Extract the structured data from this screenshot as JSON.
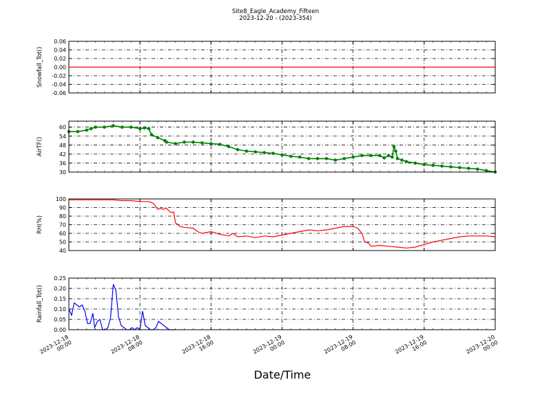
{
  "figure": {
    "title_line1": "Site8_Eagle_Academy_Fifteen",
    "title_line2": "2023-12-20 - (2023-354)",
    "xlabel": "Date/Time",
    "x_ticks": [
      {
        "line1": "2023-12-18",
        "line2": "00:00",
        "h": 0
      },
      {
        "line1": "2023-12-18",
        "line2": "08:00",
        "h": 8
      },
      {
        "line1": "2023-12-18",
        "line2": "16:00",
        "h": 16
      },
      {
        "line1": "2023-12-19",
        "line2": "00:00",
        "h": 24
      },
      {
        "line1": "2023-12-19",
        "line2": "08:00",
        "h": 32
      },
      {
        "line1": "2023-12-19",
        "line2": "16:00",
        "h": 40
      },
      {
        "line1": "2023-12-20",
        "line2": "00:00",
        "h": 48
      }
    ],
    "x_range_hours": [
      0,
      48
    ]
  },
  "chart_data": [
    {
      "type": "line",
      "ylabel": "Snowfall_Tot()",
      "ylim": [
        -0.06,
        0.06
      ],
      "yticks": [
        "0.06",
        "0.04",
        "0.02",
        "0.00",
        "-0.02",
        "-0.04",
        "-0.06"
      ],
      "ytick_values": [
        0.06,
        0.04,
        0.02,
        0.0,
        -0.02,
        -0.04,
        -0.06
      ],
      "color": "#ff0000",
      "marker": false,
      "grid": true,
      "x_hours": [
        0,
        48
      ],
      "y": [
        0.0,
        0.0
      ]
    },
    {
      "type": "line",
      "ylabel": "AirTF()",
      "ylim": [
        30,
        64
      ],
      "yticks": [
        "60",
        "54",
        "48",
        "42",
        "36",
        "30"
      ],
      "ytick_values": [
        60,
        54,
        48,
        42,
        36,
        30
      ],
      "color": "#008000",
      "marker": true,
      "grid": true,
      "x_hours": [
        0,
        1,
        2,
        2.5,
        3,
        4,
        5,
        6,
        7,
        8,
        8.5,
        9,
        9.3,
        10,
        10.8,
        11,
        12,
        13,
        14,
        15,
        16,
        17,
        18,
        19,
        20,
        21,
        22,
        23,
        24,
        25,
        26,
        27,
        28,
        29,
        30,
        31,
        32,
        33,
        34,
        35,
        35.5,
        36,
        36.4,
        36.6,
        36.8,
        37,
        37.5,
        38,
        39,
        40,
        41,
        42,
        43,
        44,
        45,
        46,
        47,
        48
      ],
      "y": [
        57,
        57,
        58,
        59,
        60,
        60,
        61,
        60,
        60,
        59,
        59.5,
        59,
        55,
        53,
        51,
        50,
        49,
        50,
        50,
        49.5,
        49,
        48.5,
        47,
        45,
        44,
        43.5,
        43,
        42.5,
        41.5,
        40.5,
        40,
        39,
        39,
        39,
        38,
        39,
        40,
        41,
        41,
        41,
        39.5,
        41,
        40,
        47,
        44,
        39,
        38,
        37,
        36,
        35,
        34.5,
        34,
        33.5,
        33,
        32.5,
        32,
        31,
        30
      ]
    },
    {
      "type": "line",
      "ylabel": "RH(%)",
      "ylim": [
        40,
        100
      ],
      "yticks": [
        "100",
        "90",
        "80",
        "70",
        "60",
        "50",
        "40"
      ],
      "ytick_values": [
        100,
        90,
        80,
        70,
        60,
        50,
        40
      ],
      "color": "#ff0000",
      "marker": false,
      "grid": true,
      "x_hours": [
        0,
        1,
        2,
        3,
        4,
        5,
        6,
        7,
        8,
        9,
        9.5,
        10,
        10.3,
        10.6,
        11,
        11.5,
        11.8,
        12,
        12.2,
        12.5,
        13,
        14,
        14.5,
        15,
        16,
        17,
        18,
        18.5,
        19,
        20,
        21,
        22,
        23,
        24,
        25,
        26,
        27,
        28,
        29,
        30,
        31,
        32,
        32.5,
        33,
        33.3,
        33.7,
        34,
        35,
        36,
        37,
        38,
        39,
        40,
        41,
        42,
        43,
        44,
        45,
        46,
        47,
        48
      ],
      "y": [
        99,
        99,
        99,
        99,
        99,
        99,
        98,
        98,
        97,
        97,
        95,
        88,
        89,
        88,
        89,
        84,
        85,
        72,
        71,
        68,
        67,
        66,
        62,
        60,
        62,
        59,
        57,
        60,
        56,
        57,
        55,
        57,
        56,
        58,
        60,
        62,
        64,
        63,
        64,
        66,
        68,
        68,
        66,
        60,
        50,
        49,
        45,
        46,
        45,
        44,
        43,
        44,
        47,
        50,
        52,
        54,
        56,
        57,
        57,
        57,
        56
      ]
    },
    {
      "type": "line",
      "ylabel": "Rainfall_Tot()",
      "ylim": [
        0,
        0.25
      ],
      "yticks": [
        "0.25",
        "0.20",
        "0.15",
        "0.10",
        "0.05",
        "0.00"
      ],
      "ytick_values": [
        0.25,
        0.2,
        0.15,
        0.1,
        0.05,
        0.0
      ],
      "color": "#0000ff",
      "marker": false,
      "grid": true,
      "x_hours": [
        0,
        0.3,
        0.6,
        0.9,
        1.2,
        1.5,
        1.8,
        2.1,
        2.4,
        2.7,
        2.9,
        3.2,
        3.5,
        3.8,
        4.1,
        4.4,
        4.7,
        5.0,
        5.3,
        5.6,
        5.9,
        6.2,
        6.5,
        6.8,
        7.1,
        7.4,
        7.7,
        8.0,
        8.3,
        8.6,
        8.9,
        9.2,
        9.5,
        9.8,
        10.1,
        10.4,
        10.7,
        11.0,
        11.3,
        11.6,
        12.0
      ],
      "y": [
        0.1,
        0.07,
        0.13,
        0.12,
        0.11,
        0.12,
        0.09,
        0.03,
        0.03,
        0.08,
        0.01,
        0.04,
        0.05,
        0.0,
        0.0,
        0.01,
        0.06,
        0.22,
        0.19,
        0.06,
        0.02,
        0.01,
        0.0,
        0.0,
        0.01,
        0.0,
        0.01,
        0.0,
        0.09,
        0.02,
        0.01,
        0.0,
        0.0,
        0.01,
        0.04,
        0.03,
        0.02,
        0.01,
        0.0,
        0.0,
        0.0
      ]
    }
  ]
}
